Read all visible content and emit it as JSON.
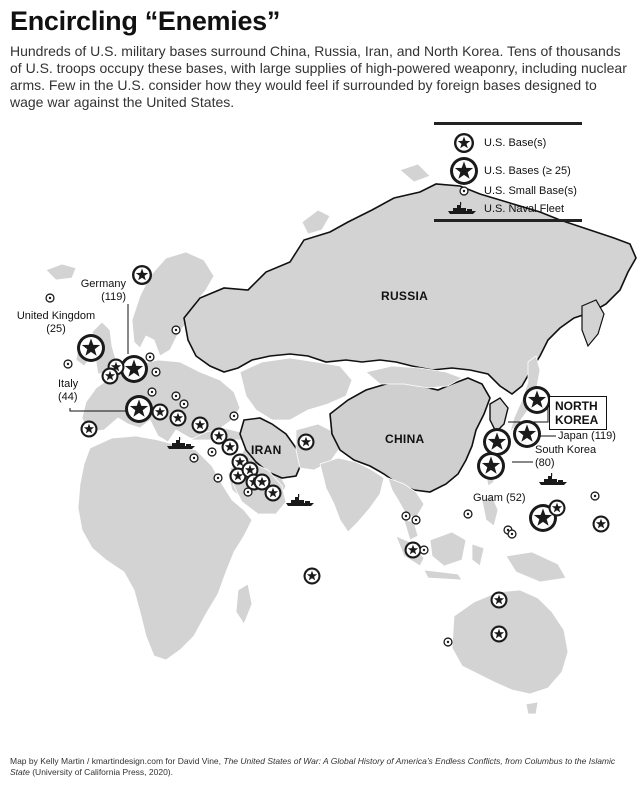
{
  "title": "Encircling “Enemies”",
  "subtitle": "Hundreds of U.S. military bases surround China, Russia, Iran, and North Korea. Tens of thousands of U.S. troops occupy these bases, with large supplies of high-powered weaponry, including nuclear arms. Few in the U.S. consider how they would feel if surrounded by foreign bases designed to wage war against the United States.",
  "legend": {
    "base": "U.S. Base(s)",
    "large_base": "U.S. Bases (≥ 25)",
    "small_base": "U.S. Small Base(s)",
    "naval_fleet": "U.S. Naval Fleet"
  },
  "countries": {
    "russia": "RUSSIA",
    "china": "CHINA",
    "iran": "IRAN",
    "north_korea_line1": "NORTH",
    "north_korea_line2": "KOREA"
  },
  "labels": {
    "germany_name": "Germany",
    "germany_count": "(119)",
    "uk_name": "United Kingdom",
    "uk_count": "(25)",
    "italy_name": "Italy",
    "italy_count": "(44)",
    "japan": "Japan (119)",
    "south_korea_name": "South Korea",
    "south_korea_count": "(80)",
    "guam": "Guam (52)"
  },
  "credit": {
    "prefix": "Map by Kelly Martin / kmartindesign.com for David Vine, ",
    "book_title": "The United States of War: A Global History of America’s Endless Conflicts, from Columbus to the Islamic State",
    "suffix": " (University of California Press, 2020)."
  },
  "colors": {
    "land": "#d3d3d3",
    "target_land": "#cfcfcf",
    "ocean": "#ffffff",
    "border": "#ffffff",
    "target_border": "#111111",
    "marker": "#1a1a1a"
  }
}
